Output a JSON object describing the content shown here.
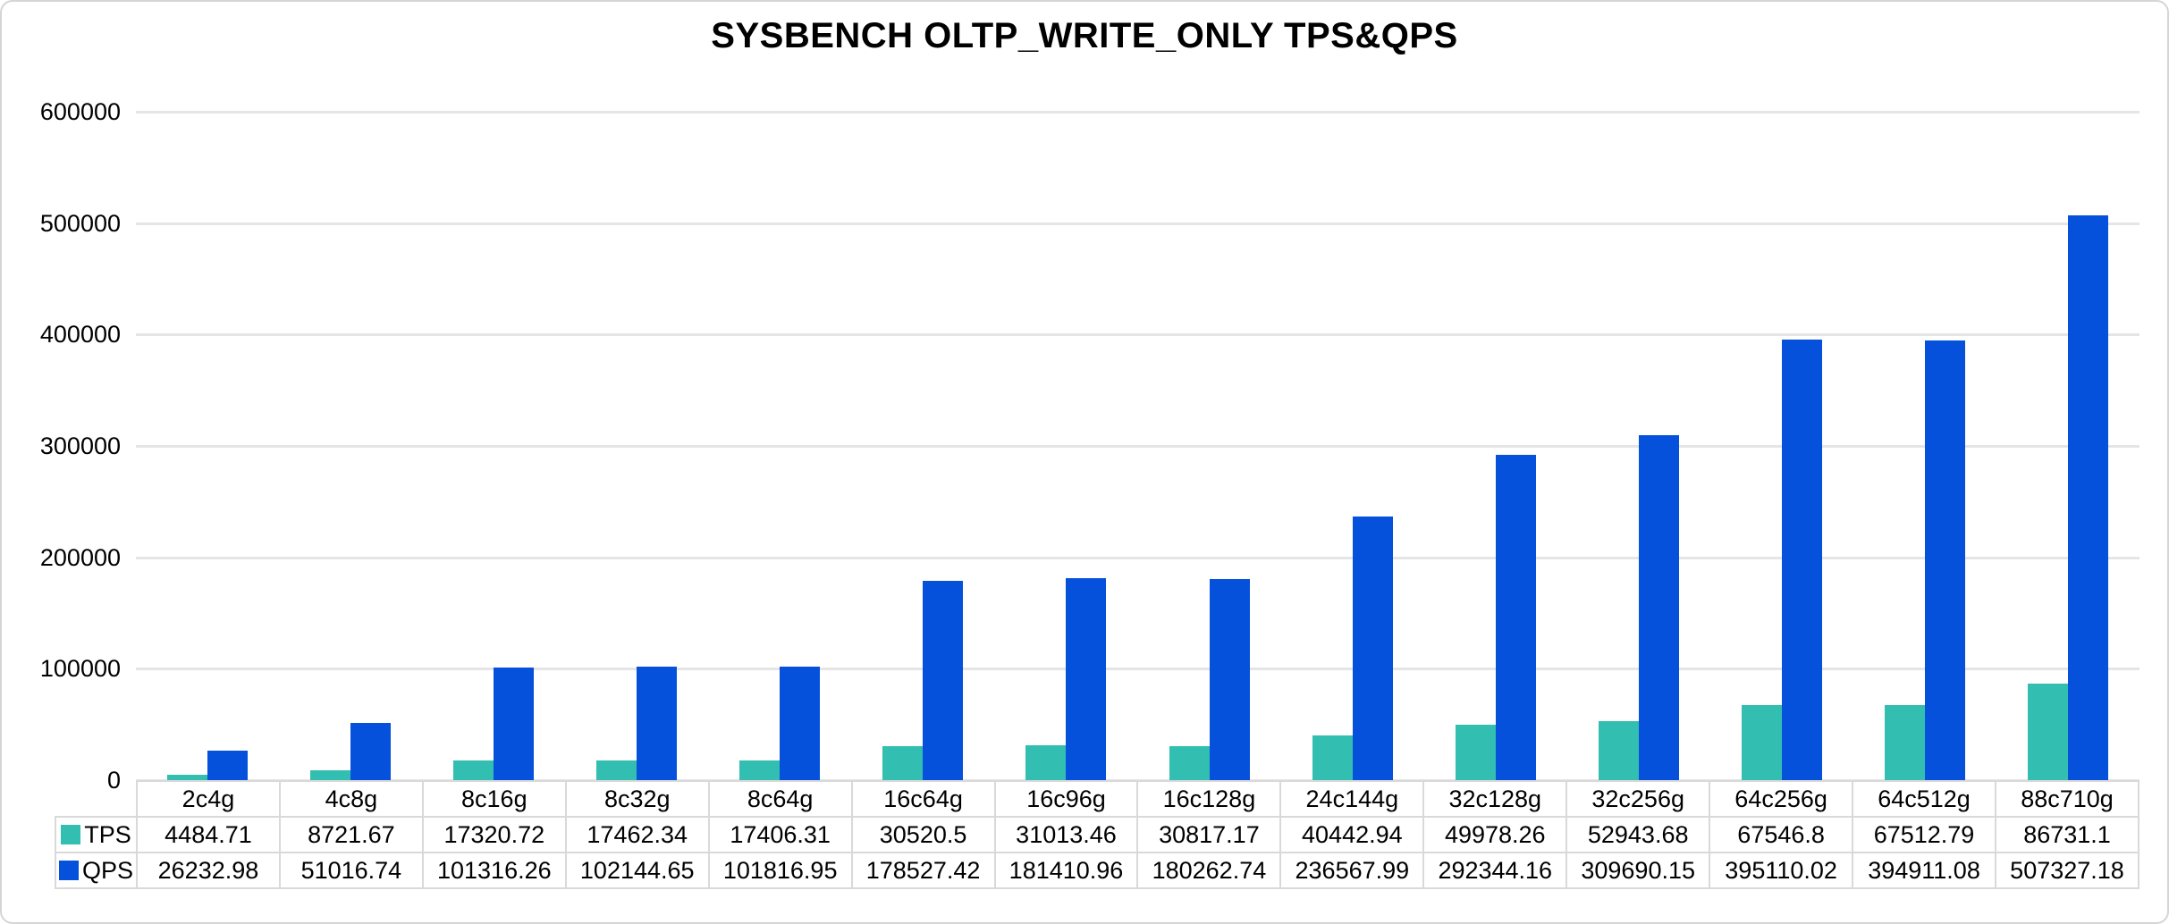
{
  "chart_data": {
    "type": "bar",
    "title": "SYSBENCH OLTP_WRITE_ONLY TPS&QPS",
    "categories": [
      "2c4g",
      "4c8g",
      "8c16g",
      "8c32g",
      "8c64g",
      "16c64g",
      "16c96g",
      "16c128g",
      "24c144g",
      "32c128g",
      "32c256g",
      "64c256g",
      "64c512g",
      "88c710g"
    ],
    "series": [
      {
        "name": "TPS",
        "color": "#32beb0",
        "values": [
          4484.71,
          8721.67,
          17320.72,
          17462.34,
          17406.31,
          30520.5,
          31013.46,
          30817.17,
          40442.94,
          49978.26,
          52943.68,
          67546.8,
          67512.79,
          86731.1
        ]
      },
      {
        "name": "QPS",
        "color": "#0551db",
        "values": [
          26232.98,
          51016.74,
          101316.26,
          102144.65,
          101816.95,
          178527.42,
          181410.96,
          180262.74,
          236567.99,
          292344.16,
          309690.15,
          395110.02,
          394911.08,
          507327.18
        ]
      }
    ],
    "y_axis": {
      "min": 0,
      "max": 600000,
      "step": 100000,
      "tick_labels": [
        "0",
        "100000",
        "200000",
        "300000",
        "400000",
        "500000",
        "600000"
      ]
    },
    "grid": "horizontal",
    "legend_position": "data-table-left",
    "data_table_shown": true
  }
}
